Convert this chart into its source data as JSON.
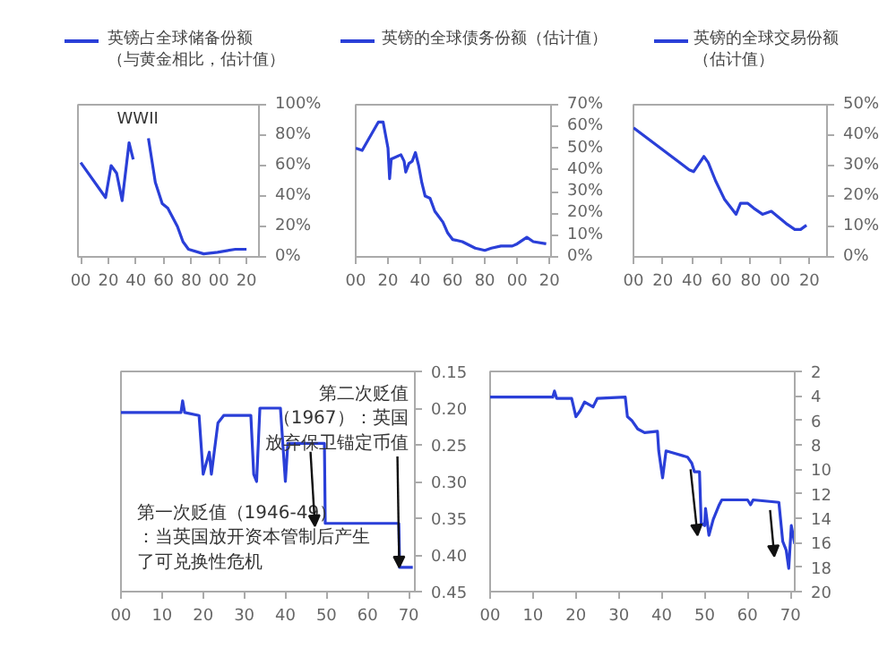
{
  "chart_data": [
    {
      "type": "line",
      "legend": "top",
      "series": [
        {
          "name": "英镑占全球储备份额（与黄金相比，估计值）",
          "color": "#2a3fd8",
          "x": [
            1900,
            1918,
            1922,
            1926,
            1930,
            1935,
            1938,
            1944,
            1949,
            1954,
            1959,
            1963,
            1970,
            1974,
            1978,
            1989,
            1999,
            2012,
            2020
          ],
          "values": [
            62,
            39,
            60,
            55,
            37,
            75,
            64,
            null,
            78,
            49,
            35,
            32,
            20,
            10,
            5,
            2,
            3,
            5,
            5
          ]
        }
      ],
      "xlim": [
        1898,
        2029
      ],
      "ylim": [
        0,
        100
      ],
      "xticks": [
        {
          "value": 1900,
          "label": "00"
        },
        {
          "value": 1920,
          "label": "20"
        },
        {
          "value": 1940,
          "label": "40"
        },
        {
          "value": 1960,
          "label": "60"
        },
        {
          "value": 1980,
          "label": "80"
        },
        {
          "value": 2000,
          "label": "00"
        },
        {
          "value": 2020,
          "label": "20"
        }
      ],
      "yticks": [
        {
          "value": 0,
          "label": "0%"
        },
        {
          "value": 20,
          "label": "20%"
        },
        {
          "value": 40,
          "label": "40%"
        },
        {
          "value": 60,
          "label": "60%"
        },
        {
          "value": 80,
          "label": "80%"
        },
        {
          "value": 100,
          "label": "100%"
        }
      ],
      "annotations": [
        "WWII"
      ]
    },
    {
      "type": "line",
      "legend": "top",
      "series": [
        {
          "name": "英镑的全球债务份额（估计值）",
          "color": "#2a3fd8",
          "x": [
            1900,
            1904,
            1914,
            1917,
            1920,
            1921,
            1922,
            1928,
            1930,
            1931,
            1933,
            1935,
            1937,
            1939,
            1941,
            1943,
            1946,
            1949,
            1954,
            1957,
            1960,
            1966,
            1974,
            1980,
            1984,
            1990,
            1997,
            2000,
            2006,
            2010,
            2018
          ],
          "values": [
            50,
            49,
            62,
            62,
            50,
            36,
            45,
            47,
            44,
            39,
            43,
            44,
            48,
            42,
            34,
            28,
            27,
            21,
            16,
            11,
            8,
            7,
            4,
            3,
            4,
            5,
            5,
            6,
            9,
            7,
            6
          ]
        }
      ],
      "xlim": [
        1900,
        2021
      ],
      "ylim": [
        0,
        70
      ],
      "xticks": [
        {
          "value": 1900,
          "label": "00"
        },
        {
          "value": 1920,
          "label": "20"
        },
        {
          "value": 1940,
          "label": "40"
        },
        {
          "value": 1960,
          "label": "60"
        },
        {
          "value": 1980,
          "label": "80"
        },
        {
          "value": 2000,
          "label": "00"
        },
        {
          "value": 2020,
          "label": "20"
        }
      ],
      "yticks": [
        {
          "value": 0,
          "label": "0%"
        },
        {
          "value": 10,
          "label": "10%"
        },
        {
          "value": 20,
          "label": "20%"
        },
        {
          "value": 30,
          "label": "30%"
        },
        {
          "value": 40,
          "label": "40%"
        },
        {
          "value": 50,
          "label": "50%"
        },
        {
          "value": 60,
          "label": "60%"
        },
        {
          "value": 70,
          "label": "70%"
        }
      ]
    },
    {
      "type": "line",
      "legend": "top",
      "series": [
        {
          "name": "英镑的全球交易份额（估计值）",
          "color": "#2a3fd8",
          "x": [
            1900,
            1938,
            1941,
            1948,
            1951,
            1956,
            1962,
            1970,
            1973,
            1978,
            1982,
            1988,
            1994,
            1999,
            2004,
            2010,
            2014,
            2018
          ],
          "values": [
            42.4,
            28.6,
            28,
            33,
            31,
            25,
            19,
            14,
            17.6,
            17.6,
            16,
            14,
            15,
            13,
            11,
            9,
            9,
            10.4
          ]
        }
      ],
      "xlim": [
        1900,
        2032
      ],
      "ylim": [
        0,
        50
      ],
      "xticks": [
        {
          "value": 1900,
          "label": "00"
        },
        {
          "value": 1920,
          "label": "20"
        },
        {
          "value": 1940,
          "label": "40"
        },
        {
          "value": 1960,
          "label": "60"
        },
        {
          "value": 1980,
          "label": "80"
        },
        {
          "value": 2000,
          "label": "00"
        },
        {
          "value": 2020,
          "label": "20"
        }
      ],
      "yticks": [
        {
          "value": 0,
          "label": "0%"
        },
        {
          "value": 10,
          "label": "10%"
        },
        {
          "value": 20,
          "label": "20%"
        },
        {
          "value": 30,
          "label": "30%"
        },
        {
          "value": 40,
          "label": "40%"
        },
        {
          "value": 50,
          "label": "50%"
        }
      ]
    },
    {
      "type": "line",
      "series": [
        {
          "color": "#2a3fd8",
          "x": [
            1900,
            1914.6,
            1915,
            1915.5,
            1919,
            1920,
            1921.5,
            1922,
            1923.6,
            1925,
            1931.6,
            1932.3,
            1933,
            1933.8,
            1938.8,
            1940,
            1940.6,
            1949.5,
            1949.7,
            1967.6,
            1967.8,
            1971
          ],
          "values": [
            0.206,
            0.206,
            0.19,
            0.206,
            0.21,
            0.29,
            0.26,
            0.29,
            0.22,
            0.21,
            0.21,
            0.29,
            0.3,
            0.2,
            0.2,
            0.3,
            0.248,
            0.248,
            0.357,
            0.357,
            0.417,
            0.417
          ]
        }
      ],
      "xlim": [
        1900,
        1971.5
      ],
      "ylim": [
        0.45,
        0.15
      ],
      "xticks": [
        {
          "value": 1900,
          "label": "00"
        },
        {
          "value": 1910,
          "label": "10"
        },
        {
          "value": 1920,
          "label": "20"
        },
        {
          "value": 1930,
          "label": "30"
        },
        {
          "value": 1940,
          "label": "40"
        },
        {
          "value": 1950,
          "label": "50"
        },
        {
          "value": 1960,
          "label": "60"
        },
        {
          "value": 1970,
          "label": "70"
        }
      ],
      "yticks": [
        {
          "value": 0.15,
          "label": "0.15"
        },
        {
          "value": 0.2,
          "label": "0.20"
        },
        {
          "value": 0.25,
          "label": "0.25"
        },
        {
          "value": 0.3,
          "label": "0.30"
        },
        {
          "value": 0.35,
          "label": "0.35"
        },
        {
          "value": 0.4,
          "label": "0.40"
        },
        {
          "value": 0.45,
          "label": "0.45"
        }
      ],
      "annotations": [
        {
          "text": "第一次贬值（1946-49）：当英国放开资本管制后产生了可兑换性危机",
          "x": 1949.6,
          "y": 0.357
        },
        {
          "text": "第二次贬值（1967）：英国放弃保卫锚定币值",
          "x": 1967.7,
          "y": 0.417
        }
      ]
    },
    {
      "type": "line",
      "series": [
        {
          "color": "#2a3fd8",
          "x": [
            1900,
            1914.6,
            1915,
            1915.5,
            1919,
            1920,
            1921,
            1922,
            1924,
            1925,
            1931.5,
            1932,
            1933,
            1934.4,
            1936,
            1939,
            1939.3,
            1940.2,
            1941,
            1943,
            1946,
            1947,
            1947.6,
            1948.8,
            1949.2,
            1950,
            1950.2,
            1951,
            1952,
            1953.4,
            1954,
            1960,
            1960.7,
            1961.3,
            1967.3,
            1968.2,
            1969,
            1969.6,
            1970.2,
            1971
          ],
          "values": [
            4.1,
            4.1,
            3.6,
            4.2,
            4.2,
            5.7,
            5.2,
            4.5,
            4.9,
            4.2,
            4.1,
            5.7,
            6,
            6.7,
            7,
            6.9,
            8.5,
            10.7,
            8.5,
            8.7,
            9,
            9.5,
            10.2,
            10.2,
            14.4,
            14.6,
            13.2,
            15.4,
            14.1,
            12.9,
            12.5,
            12.5,
            12.9,
            12.5,
            12.7,
            15.9,
            16.6,
            18.1,
            14.6,
            16.1
          ]
        }
      ],
      "xlim": [
        1900,
        1971
      ],
      "ylim": [
        20,
        2
      ],
      "xticks": [
        {
          "value": 1900,
          "label": "00"
        },
        {
          "value": 1910,
          "label": "10"
        },
        {
          "value": 1920,
          "label": "20"
        },
        {
          "value": 1930,
          "label": "30"
        },
        {
          "value": 1940,
          "label": "40"
        },
        {
          "value": 1950,
          "label": "50"
        },
        {
          "value": 1960,
          "label": "60"
        },
        {
          "value": 1970,
          "label": "70"
        }
      ],
      "yticks": [
        2,
        4,
        6,
        8,
        10,
        12,
        14,
        16,
        18,
        20
      ]
    }
  ]
}
